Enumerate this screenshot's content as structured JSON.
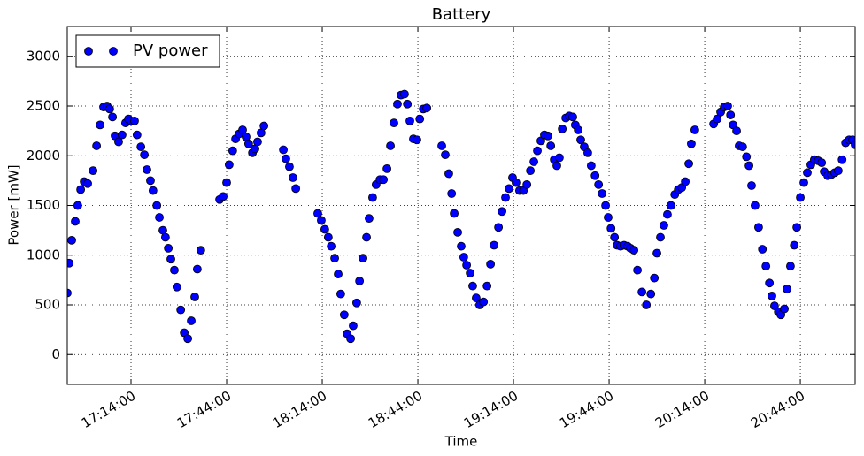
{
  "chart_data": {
    "type": "scatter",
    "title": "Battery",
    "x_label": "Time",
    "y_label": "Power [mW]",
    "legend": "upper left",
    "grid": true,
    "xlim": [
      "16:54:00",
      "21:01:12"
    ],
    "xticks": [
      "17:14:00",
      "17:44:00",
      "18:14:00",
      "18:44:00",
      "19:14:00",
      "19:44:00",
      "20:14:00",
      "20:44:00"
    ],
    "ylim": [
      -300,
      3300
    ],
    "yticks": [
      0,
      500,
      1000,
      1500,
      2000,
      2500,
      3000
    ],
    "series": [
      {
        "name": "PV power",
        "color": "#0000ff",
        "x": [
          "16:54:00",
          "16:54:36",
          "16:55:24",
          "16:56:30",
          "16:57:18",
          "16:58:12",
          "16:59:18",
          "17:00:24",
          "17:02:06",
          "17:03:12",
          "17:04:18",
          "17:05:24",
          "17:06:30",
          "17:07:18",
          "17:08:12",
          "17:09:00",
          "17:10:06",
          "17:11:12",
          "17:12:18",
          "17:13:12",
          "17:14:00",
          "17:15:06",
          "17:15:54",
          "17:17:06",
          "17:18:12",
          "17:19:00",
          "17:20:06",
          "17:20:54",
          "17:22:06",
          "17:22:54",
          "17:24:00",
          "17:24:48",
          "17:25:42",
          "17:26:30",
          "17:27:36",
          "17:28:24",
          "17:29:36",
          "17:30:42",
          "17:31:48",
          "17:32:54",
          "17:34:00",
          "17:34:48",
          "17:35:54",
          "17:41:48",
          "17:42:54",
          "17:44:00",
          "17:44:48",
          "17:45:54",
          "17:46:48",
          "17:47:54",
          "17:49:00",
          "17:50:06",
          "17:50:54",
          "17:52:06",
          "17:52:54",
          "17:53:42",
          "17:54:48",
          "17:55:42",
          "18:01:48",
          "18:02:36",
          "18:03:42",
          "18:04:48",
          "18:05:42",
          "18:12:36",
          "18:13:42",
          "18:14:48",
          "18:15:54",
          "18:16:48",
          "18:17:54",
          "18:19:00",
          "18:19:48",
          "18:20:54",
          "18:21:48",
          "18:22:54",
          "18:23:42",
          "18:24:48",
          "18:25:42",
          "18:26:48",
          "18:27:54",
          "18:28:42",
          "18:29:48",
          "18:30:54",
          "18:32:06",
          "18:33:12",
          "18:34:18",
          "18:35:24",
          "18:36:30",
          "18:37:36",
          "18:38:42",
          "18:39:48",
          "18:40:42",
          "18:41:30",
          "18:42:36",
          "18:43:42",
          "18:44:36",
          "18:45:42",
          "18:46:48",
          "18:51:30",
          "18:52:36",
          "18:53:42",
          "18:54:36",
          "18:55:24",
          "18:56:30",
          "18:57:36",
          "18:58:24",
          "18:59:18",
          "19:00:24",
          "19:01:12",
          "19:02:18",
          "19:03:24",
          "19:04:36",
          "19:05:42",
          "19:06:48",
          "19:07:54",
          "19:09:18",
          "19:10:24",
          "19:11:30",
          "19:12:36",
          "19:13:42",
          "19:14:48",
          "19:15:54",
          "19:17:06",
          "19:18:12",
          "19:19:18",
          "19:20:24",
          "19:21:30",
          "19:22:36",
          "19:23:42",
          "19:24:48",
          "19:25:42",
          "19:26:48",
          "19:27:36",
          "19:28:24",
          "19:29:18",
          "19:30:24",
          "19:31:30",
          "19:32:36",
          "19:33:24",
          "19:34:18",
          "19:35:06",
          "19:36:12",
          "19:37:18",
          "19:38:24",
          "19:39:36",
          "19:40:42",
          "19:41:48",
          "19:42:54",
          "19:43:42",
          "19:44:36",
          "19:45:42",
          "19:46:30",
          "19:47:36",
          "19:48:42",
          "19:49:48",
          "19:50:42",
          "19:51:48",
          "19:52:54",
          "19:54:18",
          "19:55:42",
          "19:57:06",
          "19:58:12",
          "19:59:00",
          "20:00:06",
          "20:01:12",
          "20:02:18",
          "20:03:24",
          "20:04:36",
          "20:05:42",
          "20:06:48",
          "20:07:54",
          "20:09:00",
          "20:09:48",
          "20:10:54",
          "20:16:48",
          "20:17:54",
          "20:19:00",
          "20:20:06",
          "20:21:12",
          "20:22:06",
          "20:22:54",
          "20:24:00",
          "20:24:48",
          "20:25:54",
          "20:27:06",
          "20:27:54",
          "20:28:42",
          "20:29:48",
          "20:30:54",
          "20:32:06",
          "20:33:12",
          "20:34:18",
          "20:35:06",
          "20:35:54",
          "20:37:06",
          "20:37:54",
          "20:39:00",
          "20:39:48",
          "20:40:54",
          "20:42:06",
          "20:42:54",
          "20:44:00",
          "20:45:06",
          "20:46:12",
          "20:47:18",
          "20:48:24",
          "20:49:36",
          "20:50:42",
          "20:51:30",
          "20:52:36",
          "20:53:42",
          "20:54:48",
          "20:55:54",
          "20:57:06",
          "20:58:12",
          "20:59:18",
          "21:00:24",
          "21:01:12"
        ],
        "values": [
          620,
          920,
          1150,
          1340,
          1500,
          1660,
          1740,
          1720,
          1850,
          2100,
          2310,
          2490,
          2500,
          2470,
          2390,
          2200,
          2140,
          2210,
          2330,
          2370,
          2350,
          2350,
          2210,
          2090,
          2010,
          1860,
          1750,
          1650,
          1500,
          1380,
          1250,
          1180,
          1070,
          960,
          850,
          680,
          450,
          220,
          160,
          340,
          580,
          860,
          1050,
          1560,
          1590,
          1730,
          1910,
          2050,
          2170,
          2220,
          2260,
          2190,
          2120,
          2030,
          2070,
          2140,
          2230,
          2300,
          2060,
          1970,
          1890,
          1780,
          1670,
          1420,
          1350,
          1260,
          1180,
          1090,
          970,
          810,
          610,
          400,
          210,
          160,
          290,
          520,
          740,
          970,
          1180,
          1370,
          1580,
          1710,
          1760,
          1760,
          1870,
          2100,
          2330,
          2520,
          2610,
          2620,
          2520,
          2350,
          2170,
          2160,
          2370,
          2470,
          2480,
          2100,
          2010,
          1820,
          1620,
          1420,
          1230,
          1090,
          980,
          900,
          820,
          690,
          570,
          500,
          530,
          690,
          910,
          1100,
          1280,
          1440,
          1580,
          1670,
          1780,
          1730,
          1650,
          1650,
          1710,
          1850,
          1940,
          2050,
          2150,
          2210,
          2200,
          2100,
          1960,
          1900,
          1980,
          2270,
          2380,
          2400,
          2390,
          2310,
          2260,
          2160,
          2090,
          2030,
          1900,
          1800,
          1710,
          1620,
          1500,
          1380,
          1270,
          1180,
          1100,
          1090,
          1100,
          1090,
          1070,
          1050,
          850,
          630,
          500,
          610,
          770,
          1020,
          1180,
          1300,
          1410,
          1500,
          1610,
          1660,
          1680,
          1740,
          1920,
          2120,
          2260,
          2320,
          2370,
          2440,
          2490,
          2500,
          2410,
          2310,
          2250,
          2100,
          2090,
          1990,
          1900,
          1700,
          1500,
          1280,
          1060,
          890,
          720,
          590,
          490,
          430,
          400,
          460,
          660,
          890,
          1100,
          1280,
          1580,
          1730,
          1830,
          1910,
          1960,
          1950,
          1930,
          1840,
          1800,
          1810,
          1830,
          1850,
          1960,
          2130,
          2160,
          2160,
          2110
        ]
      }
    ]
  }
}
